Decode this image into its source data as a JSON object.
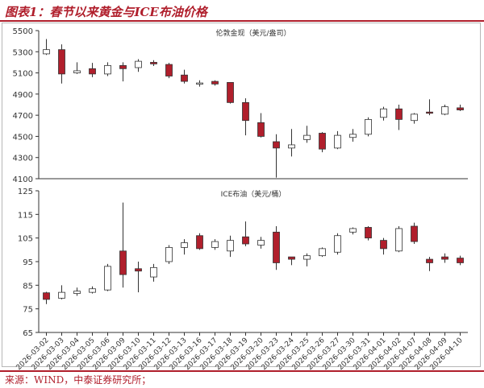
{
  "figure": {
    "title": "图表1：春节以来黄金与ICE布油价格",
    "source": "来源：WIND，中泰证券研究所；"
  },
  "colors": {
    "up": "#ffffff",
    "down": "#b01f2c",
    "stroke": "#333333",
    "axis": "#333333"
  },
  "chart_data": [
    {
      "type": "candlestick",
      "title": "伦敦金现（美元/盎司）",
      "ylim": [
        4100,
        5500
      ],
      "yticks": [
        4100,
        4300,
        4500,
        4700,
        4900,
        5100,
        5300,
        5500
      ],
      "grid": false,
      "categories": [
        "2026-03-02",
        "2026-03-03",
        "2026-03-04",
        "2026-03-05",
        "2026-03-06",
        "2026-03-09",
        "2026-03-10",
        "2026-03-11",
        "2026-03-12",
        "2026-03-13",
        "2026-03-16",
        "2026-03-17",
        "2026-03-18",
        "2026-03-19",
        "2026-03-20",
        "2026-03-23",
        "2026-03-24",
        "2026-03-25",
        "2026-03-26",
        "2026-03-27",
        "2026-03-30",
        "2026-03-31",
        "2026-04-01",
        "2026-04-02",
        "2026-04-07",
        "2026-04-08",
        "2026-04-09",
        "2026-04-10"
      ],
      "ohlc": [
        [
          5280,
          5420,
          5270,
          5320
        ],
        [
          5320,
          5370,
          5000,
          5090
        ],
        [
          5100,
          5200,
          5090,
          5120
        ],
        [
          5140,
          5195,
          5060,
          5090
        ],
        [
          5090,
          5200,
          5070,
          5170
        ],
        [
          5170,
          5200,
          5020,
          5140
        ],
        [
          5150,
          5230,
          5110,
          5210
        ],
        [
          5200,
          5220,
          5165,
          5185
        ],
        [
          5180,
          5195,
          5050,
          5070
        ],
        [
          5080,
          5130,
          5000,
          5020
        ],
        [
          5000,
          5030,
          4970,
          5005
        ],
        [
          5020,
          5030,
          4980,
          4995
        ],
        [
          5010,
          5010,
          4810,
          4820
        ],
        [
          4820,
          4860,
          4510,
          4650
        ],
        [
          4630,
          4720,
          4490,
          4500
        ],
        [
          4450,
          4520,
          4110,
          4390
        ],
        [
          4390,
          4570,
          4310,
          4420
        ],
        [
          4470,
          4600,
          4440,
          4510
        ],
        [
          4530,
          4540,
          4350,
          4380
        ],
        [
          4390,
          4550,
          4380,
          4510
        ],
        [
          4490,
          4570,
          4450,
          4520
        ],
        [
          4520,
          4680,
          4500,
          4660
        ],
        [
          4680,
          4780,
          4650,
          4760
        ],
        [
          4760,
          4800,
          4560,
          4660
        ],
        [
          4650,
          4720,
          4620,
          4710
        ],
        [
          4730,
          4850,
          4700,
          4720
        ],
        [
          4710,
          4800,
          4700,
          4780
        ],
        [
          4770,
          4800,
          4740,
          4750
        ]
      ]
    },
    {
      "type": "candlestick",
      "title": "ICE布油（美元/桶）",
      "ylim": [
        65,
        125
      ],
      "yticks": [
        65,
        75,
        85,
        95,
        105,
        115,
        125
      ],
      "grid": false,
      "categories": [
        "2026-03-02",
        "2026-03-03",
        "2026-03-04",
        "2026-03-05",
        "2026-03-06",
        "2026-03-09",
        "2026-03-10",
        "2026-03-11",
        "2026-03-12",
        "2026-03-13",
        "2026-03-16",
        "2026-03-17",
        "2026-03-18",
        "2026-03-19",
        "2026-03-20",
        "2026-03-23",
        "2026-03-24",
        "2026-03-25",
        "2026-03-26",
        "2026-03-27",
        "2026-03-30",
        "2026-03-31",
        "2026-04-01",
        "2026-04-02",
        "2026-04-07",
        "2026-04-08",
        "2026-04-09",
        "2026-04-10"
      ],
      "ohlc": [
        [
          81.8,
          82.2,
          77.0,
          79.0
        ],
        [
          79.5,
          85.0,
          79.0,
          82.0
        ],
        [
          81.5,
          84.0,
          80.5,
          82.5
        ],
        [
          82.0,
          84.5,
          81.5,
          83.5
        ],
        [
          83.0,
          94.0,
          82.5,
          93.0
        ],
        [
          99.5,
          120.0,
          84.0,
          89.5
        ],
        [
          92.0,
          95.0,
          82.0,
          91.0
        ],
        [
          88.5,
          94.0,
          86.5,
          92.5
        ],
        [
          95.0,
          102.0,
          94.0,
          101.0
        ],
        [
          101.0,
          104.5,
          98.0,
          103.0
        ],
        [
          106.0,
          107.0,
          100.0,
          100.5
        ],
        [
          101.0,
          104.5,
          100.0,
          103.5
        ],
        [
          99.5,
          106.0,
          97.0,
          104.0
        ],
        [
          105.5,
          112.0,
          101.5,
          102.5
        ],
        [
          102.0,
          105.5,
          100.5,
          104.0
        ],
        [
          107.5,
          110.0,
          91.5,
          94.5
        ],
        [
          97.0,
          97.0,
          93.5,
          96.0
        ],
        [
          96.0,
          98.5,
          93.0,
          97.5
        ],
        [
          97.5,
          101.0,
          97.0,
          100.5
        ],
        [
          99.0,
          107.0,
          98.0,
          106.0
        ],
        [
          107.5,
          109.5,
          106.5,
          109.0
        ],
        [
          109.5,
          110.0,
          104.0,
          105.0
        ],
        [
          104.0,
          105.0,
          98.0,
          100.5
        ],
        [
          99.5,
          110.0,
          99.0,
          109.0
        ],
        [
          110.0,
          111.5,
          102.5,
          103.5
        ],
        [
          96.0,
          97.0,
          91.0,
          94.5
        ],
        [
          97.0,
          98.5,
          94.5,
          96.0
        ],
        [
          96.5,
          97.5,
          93.5,
          94.5
        ]
      ]
    }
  ]
}
